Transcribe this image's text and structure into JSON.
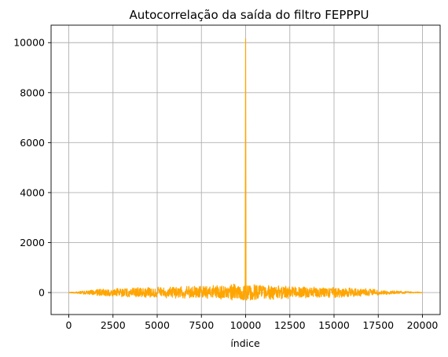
{
  "chart_data": {
    "type": "line",
    "title": "Autocorrelação da saída do filtro FEPPPU",
    "xlabel": "índice",
    "ylabel": "",
    "xlim": [
      -1000,
      21000
    ],
    "ylim": [
      -880,
      10700
    ],
    "xticks": [
      0,
      2500,
      5000,
      7500,
      10000,
      12500,
      15000,
      17500,
      20000
    ],
    "xtick_labels": [
      "0",
      "2500",
      "5000",
      "7500",
      "10000",
      "12500",
      "15000",
      "17500",
      "20000"
    ],
    "yticks": [
      0,
      2000,
      4000,
      6000,
      8000,
      10000
    ],
    "ytick_labels": [
      "0",
      "2000",
      "4000",
      "6000",
      "8000",
      "10000"
    ],
    "grid": true,
    "series": [
      {
        "color": "#FFA500",
        "peak": {
          "x": 10000,
          "y": 10150
        },
        "x_range": [
          0,
          20000
        ],
        "x": [
          0,
          500,
          1000,
          1500,
          2000,
          2500,
          3000,
          3500,
          4000,
          4500,
          5000,
          5500,
          6000,
          6500,
          7000,
          7500,
          8000,
          8500,
          9000,
          9500,
          9999,
          10000,
          10001,
          10500,
          11000,
          11500,
          12000,
          12500,
          13000,
          13500,
          14000,
          14500,
          15000,
          15500,
          16000,
          16500,
          17000,
          17500,
          18000,
          18500,
          19000,
          19500,
          20000
        ],
        "envelope_upper": [
          10,
          40,
          80,
          120,
          150,
          170,
          190,
          200,
          210,
          220,
          230,
          235,
          240,
          250,
          260,
          270,
          280,
          300,
          320,
          350,
          380,
          10150,
          380,
          340,
          300,
          280,
          270,
          260,
          250,
          240,
          230,
          220,
          210,
          200,
          190,
          170,
          150,
          120,
          90,
          70,
          50,
          30,
          10
        ],
        "envelope_lower": [
          -10,
          -40,
          -80,
          -110,
          -140,
          -160,
          -180,
          -190,
          -200,
          -210,
          -220,
          -225,
          -230,
          -240,
          -250,
          -260,
          -270,
          -290,
          -300,
          -320,
          -340,
          0,
          -340,
          -320,
          -300,
          -280,
          -270,
          -250,
          -240,
          -230,
          -220,
          -210,
          -200,
          -190,
          -180,
          -160,
          -140,
          -110,
          -80,
          -60,
          -40,
          -20,
          -10
        ]
      }
    ]
  }
}
